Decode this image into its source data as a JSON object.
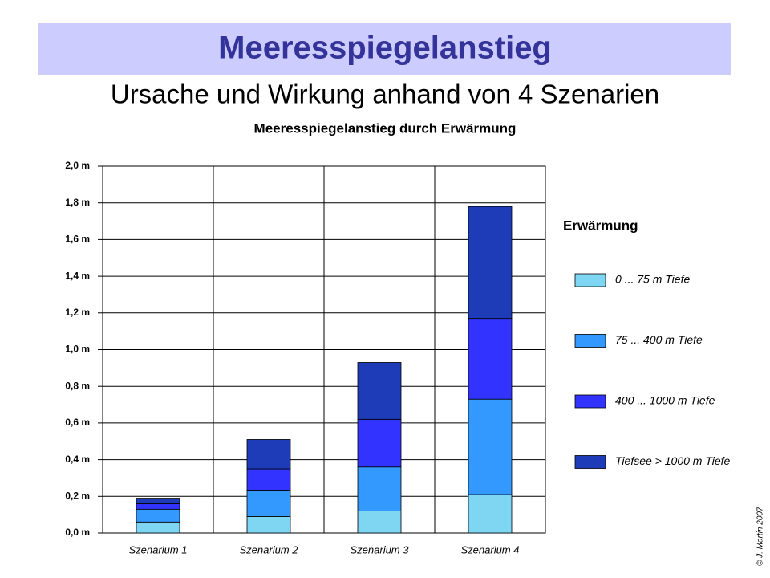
{
  "header": {
    "title": "Meeresspiegelanstieg",
    "subtitle": "Ursache und Wirkung anhand von 4 Szenarien"
  },
  "copyright": "© J. Martin 2007",
  "chart_data": {
    "type": "stacked_bar",
    "title": "Meeresspiegelanstieg durch Erwärmung",
    "legend_title": "Erwärmung",
    "categories": [
      "Szenarium 1",
      "Szenarium 2",
      "Szenarium 3",
      "Szenarium 4"
    ],
    "series": [
      {
        "name": "0 ... 75 m Tiefe",
        "color": "#7fd6f2",
        "values": [
          0.06,
          0.09,
          0.12,
          0.21
        ]
      },
      {
        "name": "75 ... 400 m Tiefe",
        "color": "#3399ff",
        "values": [
          0.07,
          0.14,
          0.24,
          0.52
        ]
      },
      {
        "name": "400 ... 1000 m Tiefe",
        "color": "#3333ff",
        "values": [
          0.03,
          0.12,
          0.26,
          0.44
        ]
      },
      {
        "name": "Tiefsee > 1000 m Tiefe",
        "color": "#1f3cb8",
        "values": [
          0.03,
          0.16,
          0.31,
          0.61
        ]
      }
    ],
    "ylim": [
      0,
      2
    ],
    "yticks": [
      {
        "value": 0,
        "label": "0,0 m"
      },
      {
        "value": 0.2,
        "label": "0,2 m"
      },
      {
        "value": 0.4,
        "label": "0,4 m"
      },
      {
        "value": 0.6,
        "label": "0,6 m"
      },
      {
        "value": 0.8,
        "label": "0,8 m"
      },
      {
        "value": 1.0,
        "label": "1,0 m"
      },
      {
        "value": 1.2,
        "label": "1,2 m"
      },
      {
        "value": 1.4,
        "label": "1,4 m"
      },
      {
        "value": 1.6,
        "label": "1,6 m"
      },
      {
        "value": 1.8,
        "label": "1,8 m"
      },
      {
        "value": 2.0,
        "label": "2,0 m"
      }
    ],
    "grid": true
  }
}
